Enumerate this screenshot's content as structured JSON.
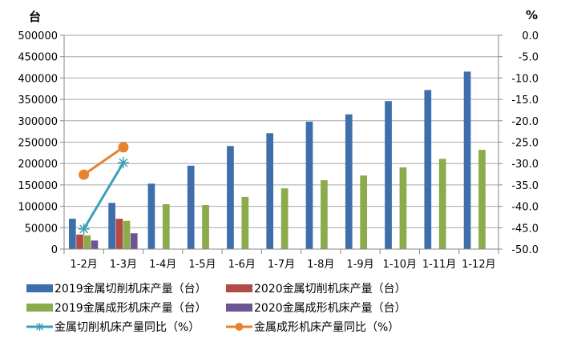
{
  "chart_data": {
    "type": "bar",
    "left_unit": "台",
    "right_unit": "%",
    "categories": [
      "1-2月",
      "1-3月",
      "1-4月",
      "1-5月",
      "1-6月",
      "1-7月",
      "1-8月",
      "1-9月",
      "1-10月",
      "1-11月",
      "1-12月"
    ],
    "y_left": {
      "range": [
        0,
        500000
      ],
      "ticks": [
        "0",
        "50000",
        "100000",
        "150000",
        "200000",
        "250000",
        "300000",
        "350000",
        "400000",
        "450000",
        "500000"
      ]
    },
    "y_right": {
      "range": [
        -50,
        0
      ],
      "ticks": [
        "-50.0",
        "-45.0",
        "-40.0",
        "-35.0",
        "-30.0",
        "-25.0",
        "-20.0",
        "-15.0",
        "-10.0",
        "-5.0",
        "0.0"
      ]
    },
    "grid": "horizontal",
    "legend_placement": "bottom",
    "series": [
      {
        "name": "2019金属切削机床产量（台）",
        "kind": "bar",
        "axis": "left",
        "slot": 0,
        "color": "#3f6faa",
        "values": [
          71000,
          108000,
          153000,
          195000,
          241000,
          271000,
          298000,
          315000,
          346000,
          372000,
          415000
        ]
      },
      {
        "name": "2020金属切削机床产量（台）",
        "kind": "bar",
        "axis": "left",
        "slot": 1,
        "color": "#b24a46",
        "values": [
          34000,
          71000,
          null,
          null,
          null,
          null,
          null,
          null,
          null,
          null,
          null
        ]
      },
      {
        "name": "2019金属成形机床产量（台）",
        "kind": "bar",
        "axis": "left",
        "slot": 2,
        "color": "#8cab4a",
        "values": [
          32000,
          66000,
          105000,
          103000,
          122000,
          142000,
          161000,
          172000,
          191000,
          211000,
          232000
        ]
      },
      {
        "name": "2020金属成形机床产量（台）",
        "kind": "bar",
        "axis": "left",
        "slot": 3,
        "color": "#6c5592",
        "values": [
          20000,
          37000,
          null,
          null,
          null,
          null,
          null,
          null,
          null,
          null,
          null
        ]
      },
      {
        "name": "金属切削机床产量同比（%）",
        "kind": "line",
        "marker": "asterisk",
        "axis": "right",
        "color": "#3aa0b8",
        "values": [
          -45.3,
          -29.8,
          null,
          null,
          null,
          null,
          null,
          null,
          null,
          null,
          null
        ]
      },
      {
        "name": "金属成形机床产量同比（%）",
        "kind": "line",
        "marker": "circle",
        "axis": "right",
        "color": "#e9822f",
        "values": [
          -32.6,
          -26.2,
          null,
          null,
          null,
          null,
          null,
          null,
          null,
          null,
          null
        ]
      }
    ]
  }
}
